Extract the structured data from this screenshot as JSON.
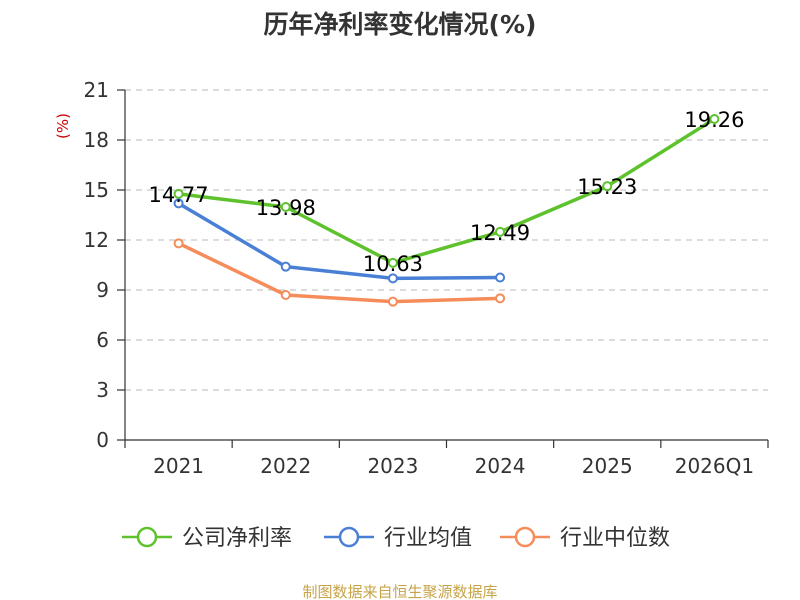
{
  "chart_data": {
    "type": "line",
    "title": "历年净利率变化情况(%)",
    "ylabel": "(%)",
    "categories": [
      "2021",
      "2022",
      "2023",
      "2024",
      "2025",
      "2026Q1"
    ],
    "ylim": [
      0,
      21
    ],
    "yticks": [
      0,
      3,
      6,
      9,
      12,
      15,
      18,
      21
    ],
    "grid": true,
    "legend_position": "bottom",
    "series": [
      {
        "name": "公司净利率",
        "color": "#5ec22d",
        "values": [
          14.77,
          13.98,
          10.63,
          12.49,
          15.23,
          19.26
        ],
        "labels": [
          "14.77",
          "13.98",
          "10.63",
          "12.49",
          "15.23",
          "19.26"
        ]
      },
      {
        "name": "行业均值",
        "color": "#4a7fd6",
        "values": [
          14.2,
          10.4,
          9.7,
          9.75,
          null,
          null
        ]
      },
      {
        "name": "行业中位数",
        "color": "#f58c5a",
        "values": [
          11.8,
          8.7,
          8.3,
          8.5,
          null,
          null
        ]
      }
    ]
  },
  "source": "制图数据来自恒生聚源数据库"
}
